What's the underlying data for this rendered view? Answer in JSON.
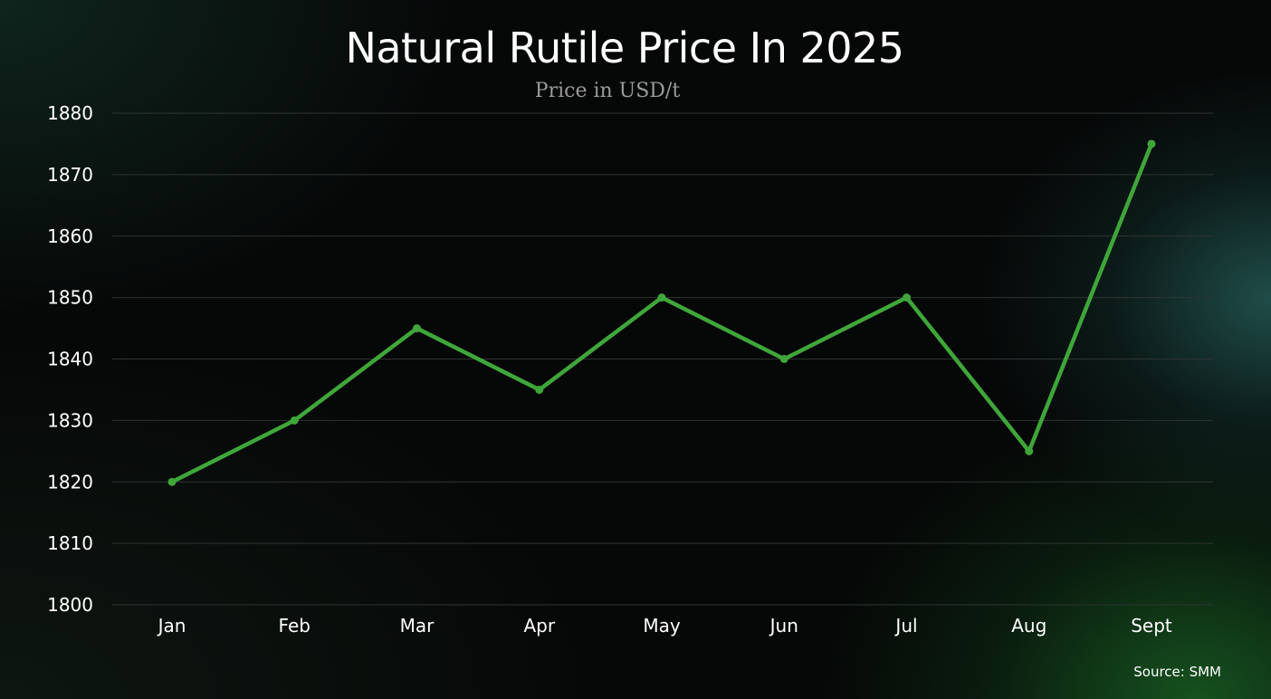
{
  "chart_data": {
    "type": "line",
    "title": "Natural Rutile Price In 2025",
    "subtitle": "Price in USD/t",
    "categories": [
      "Jan",
      "Feb",
      "Mar",
      "Apr",
      "May",
      "Jun",
      "Jul",
      "Aug",
      "Sept"
    ],
    "series": [
      {
        "values": [
          1820,
          1830,
          1845,
          1835,
          1850,
          1840,
          1850,
          1825,
          1875
        ],
        "color": "#3fa63a"
      }
    ],
    "ylim": [
      1800,
      1880
    ],
    "yticks": [
      1800,
      1810,
      1820,
      1830,
      1840,
      1850,
      1860,
      1870,
      1880
    ],
    "grid": true,
    "legend": "none",
    "source": "Source: SMM",
    "colors": {
      "line": "#3fa63a",
      "grid": "#2e3432",
      "text": "#ffffff",
      "subtitle": "#9a9a9a"
    }
  }
}
